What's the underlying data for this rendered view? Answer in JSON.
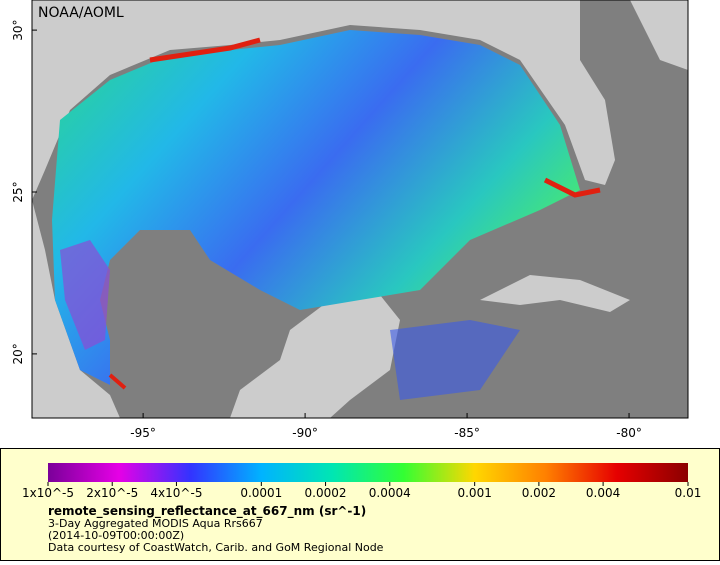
{
  "map": {
    "credit": "NOAA/AOML",
    "xlim": [
      -98.43,
      -78.18
    ],
    "ylim": [
      18.02,
      30.93
    ],
    "xticks": [
      {
        "value": -95,
        "label": "-95°"
      },
      {
        "value": -90,
        "label": "-90°"
      },
      {
        "value": -85,
        "label": "-85°"
      },
      {
        "value": -80,
        "label": "-80°"
      }
    ],
    "yticks": [
      {
        "value": 20,
        "label": "20°"
      },
      {
        "value": 25,
        "label": "25°"
      },
      {
        "value": 30,
        "label": "30°"
      }
    ]
  },
  "colorbar": {
    "scale": "log",
    "lim": [
      1e-05,
      0.01
    ],
    "colors": [
      "#7a0099",
      "#e600e6",
      "#3333ff",
      "#00b3ff",
      "#00e6b3",
      "#33ff33",
      "#ffd700",
      "#ff8000",
      "#e60000",
      "#8b0000"
    ],
    "ticks": [
      {
        "value": 1e-05,
        "label": "1x10^-5"
      },
      {
        "value": 2e-05,
        "label": "2x10^-5"
      },
      {
        "value": 4e-05,
        "label": "4x10^-5"
      },
      0.0001,
      0.0002,
      0.0004,
      0.001,
      0.002,
      0.004,
      0.01
    ]
  },
  "legend": {
    "title": "remote_sensing_reflectance_at_667_nm (sr^-1)",
    "lines": [
      "3-Day Aggregated MODIS Aqua Rrs667",
      "(2014-10-09T00:00:00Z)",
      "Data courtesy of CoastWatch, Carib. and GoM Regional Node"
    ]
  }
}
